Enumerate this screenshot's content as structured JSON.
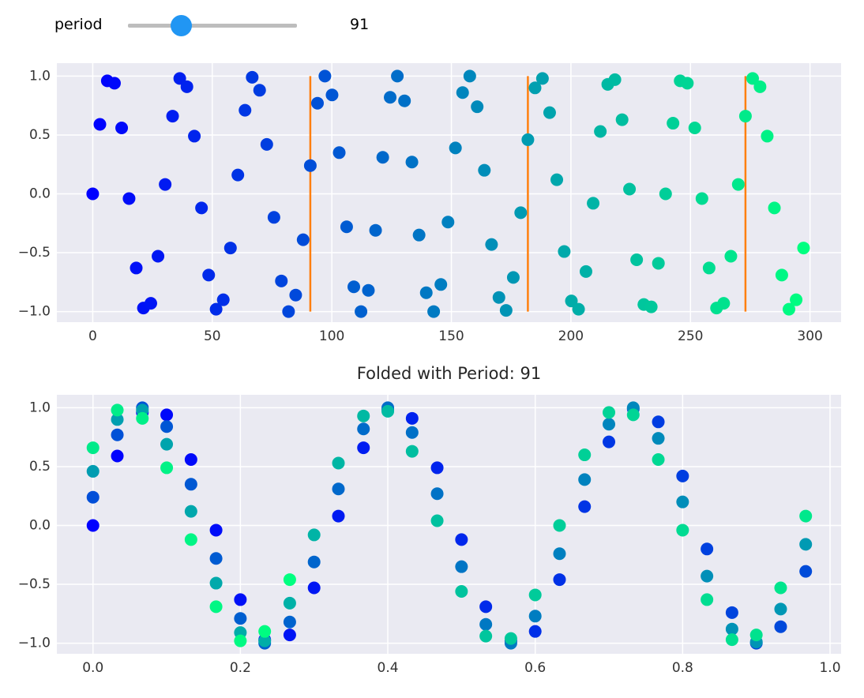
{
  "slider": {
    "label": "period",
    "value": 91
  },
  "chart_data": [
    {
      "type": "scatter",
      "x": [
        0,
        3.0,
        6.1,
        9.1,
        12.1,
        15.2,
        18.2,
        21.2,
        24.3,
        27.3,
        30.3,
        33.4,
        36.4,
        39.4,
        42.5,
        45.5,
        48.5,
        51.6,
        54.6,
        57.6,
        60.7,
        63.7,
        66.7,
        69.8,
        72.8,
        75.8,
        78.9,
        81.9,
        84.9,
        88.0,
        91.0,
        94.0,
        97.1,
        100.1,
        103.1,
        106.2,
        109.2,
        112.2,
        115.3,
        118.3,
        121.3,
        124.4,
        127.4,
        130.4,
        133.5,
        136.5,
        139.5,
        142.6,
        145.6,
        148.6,
        151.7,
        154.7,
        157.7,
        160.8,
        163.8,
        166.8,
        169.9,
        172.9,
        175.9,
        179.0,
        182.0,
        185.0,
        188.1,
        191.1,
        194.1,
        197.2,
        200.2,
        203.2,
        206.3,
        209.3,
        212.3,
        215.4,
        218.4,
        221.4,
        224.5,
        227.5,
        230.5,
        233.6,
        236.6,
        239.6,
        242.7,
        245.7,
        248.7,
        251.8,
        254.8,
        257.8,
        260.9,
        263.9,
        266.9,
        270.0,
        273.0,
        276.0,
        279.1,
        282.1,
        285.1,
        288.2,
        291.2,
        294.2,
        297.3
      ],
      "values": [
        0,
        0.59,
        0.96,
        0.94,
        0.56,
        -0.04,
        -0.63,
        -0.97,
        -0.93,
        -0.53,
        0.08,
        0.66,
        0.98,
        0.91,
        0.49,
        -0.12,
        -0.69,
        -0.98,
        -0.9,
        -0.46,
        0.16,
        0.71,
        0.99,
        0.88,
        0.42,
        -0.2,
        -0.74,
        -1,
        -0.86,
        -0.39,
        0.24,
        0.77,
        1,
        0.84,
        0.35,
        -0.28,
        -0.79,
        -1,
        -0.82,
        -0.31,
        0.31,
        0.82,
        1,
        0.79,
        0.27,
        -0.35,
        -0.84,
        -1,
        -0.77,
        -0.24,
        0.39,
        0.86,
        1,
        0.74,
        0.2,
        -0.43,
        -0.88,
        -0.99,
        -0.71,
        -0.16,
        0.46,
        0.9,
        0.98,
        0.69,
        0.12,
        -0.49,
        -0.91,
        -0.98,
        -0.66,
        -0.08,
        0.53,
        0.93,
        0.97,
        0.63,
        0.04,
        -0.56,
        -0.94,
        -0.96,
        -0.59,
        0,
        0.6,
        0.96,
        0.94,
        0.56,
        -0.04,
        -0.63,
        -0.97,
        -0.93,
        -0.53,
        0.08,
        0.66,
        0.98,
        0.91,
        0.49,
        -0.12,
        -0.69,
        -0.98,
        -0.9,
        -0.46
      ],
      "color_range": [
        "#0000ff",
        "#00ff80"
      ],
      "vlines": {
        "x": [
          91,
          182,
          273
        ],
        "ymin": -1,
        "ymax": 1,
        "color": "#ff7f0e"
      },
      "xlim": [
        -15,
        313
      ],
      "ylim": [
        -1.09,
        1.11
      ],
      "xticks": [
        0,
        50,
        100,
        150,
        200,
        250,
        300
      ],
      "yticks": [
        {
          "value": -1,
          "label": "−1.0"
        },
        {
          "value": -0.5,
          "label": "−0.5"
        },
        {
          "value": 0,
          "label": "0.0"
        },
        0.5,
        {
          "value": 1,
          "label": "1.0"
        }
      ],
      "grid": true
    },
    {
      "type": "scatter",
      "title": "Folded with Period: 91",
      "x": [
        0,
        0.033,
        0.067,
        0.1,
        0.133,
        0.167,
        0.2,
        0.233,
        0.267,
        0.3,
        0.333,
        0.367,
        0.4,
        0.433,
        0.467,
        0.5,
        0.533,
        0.567,
        0.6,
        0.633,
        0.667,
        0.7,
        0.733,
        0.767,
        0.8,
        0.833,
        0.867,
        0.9,
        0.933,
        0.967,
        0,
        0.033,
        0.067,
        0.1,
        0.133,
        0.167,
        0.2,
        0.233,
        0.267,
        0.3,
        0.333,
        0.367,
        0.4,
        0.433,
        0.467,
        0.5,
        0.533,
        0.567,
        0.6,
        0.633,
        0.667,
        0.7,
        0.733,
        0.767,
        0.8,
        0.833,
        0.867,
        0.9,
        0.933,
        0.967,
        0,
        0.033,
        0.067,
        0.1,
        0.133,
        0.167,
        0.2,
        0.233,
        0.267,
        0.3,
        0.333,
        0.367,
        0.4,
        0.433,
        0.467,
        0.5,
        0.533,
        0.567,
        0.6,
        0.633,
        0.667,
        0.7,
        0.733,
        0.767,
        0.8,
        0.833,
        0.867,
        0.9,
        0.933,
        0.967,
        0,
        0.033,
        0.067,
        0.1,
        0.133,
        0.167,
        0.2,
        0.233,
        0.267
      ],
      "values": [
        0,
        0.59,
        0.96,
        0.94,
        0.56,
        -0.04,
        -0.63,
        -0.97,
        -0.93,
        -0.53,
        0.08,
        0.66,
        0.98,
        0.91,
        0.49,
        -0.12,
        -0.69,
        -0.98,
        -0.9,
        -0.46,
        0.16,
        0.71,
        0.99,
        0.88,
        0.42,
        -0.2,
        -0.74,
        -1,
        -0.86,
        -0.39,
        0.24,
        0.77,
        1,
        0.84,
        0.35,
        -0.28,
        -0.79,
        -1,
        -0.82,
        -0.31,
        0.31,
        0.82,
        1,
        0.79,
        0.27,
        -0.35,
        -0.84,
        -1,
        -0.77,
        -0.24,
        0.39,
        0.86,
        1,
        0.74,
        0.2,
        -0.43,
        -0.88,
        -0.99,
        -0.71,
        -0.16,
        0.46,
        0.9,
        0.98,
        0.69,
        0.12,
        -0.49,
        -0.91,
        -0.98,
        -0.66,
        -0.08,
        0.53,
        0.93,
        0.97,
        0.63,
        0.04,
        -0.56,
        -0.94,
        -0.96,
        -0.59,
        0,
        0.6,
        0.96,
        0.94,
        0.56,
        -0.04,
        -0.63,
        -0.97,
        -0.93,
        -0.53,
        0.08,
        0.66,
        0.98,
        0.91,
        0.49,
        -0.12,
        -0.69,
        -0.98,
        -0.9,
        -0.46
      ],
      "color_range": [
        "#0000ff",
        "#00ff80"
      ],
      "xlim": [
        -0.049,
        1.015
      ],
      "ylim": [
        -1.09,
        1.11
      ],
      "xticks": [
        {
          "value": 0,
          "label": "0.0"
        },
        0.2,
        0.4,
        0.6,
        0.8,
        {
          "value": 1,
          "label": "1.0"
        }
      ],
      "yticks": [
        {
          "value": -1,
          "label": "−1.0"
        },
        {
          "value": -0.5,
          "label": "−0.5"
        },
        {
          "value": 0,
          "label": "0.0"
        },
        0.5,
        {
          "value": 1,
          "label": "1.0"
        }
      ],
      "grid": true
    }
  ]
}
